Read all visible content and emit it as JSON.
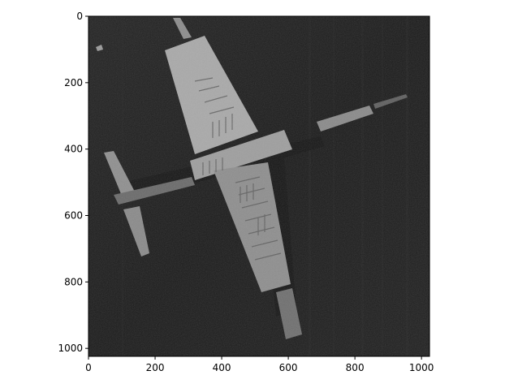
{
  "figure": {
    "subject": "grayscale-aerial-photo",
    "colors": {
      "image_background": "#1c1c1c",
      "foreground_light": "#bdbdbd",
      "axes_spine": "#000000"
    }
  },
  "axes": {
    "x_ticks": [
      {
        "value": 0,
        "label": "0"
      },
      {
        "value": 200,
        "label": "200"
      },
      {
        "value": 400,
        "label": "400"
      },
      {
        "value": 600,
        "label": "600"
      },
      {
        "value": 800,
        "label": "800"
      },
      {
        "value": 1000,
        "label": "1000"
      }
    ],
    "y_ticks": [
      {
        "value": 0,
        "label": "0"
      },
      {
        "value": 200,
        "label": "200"
      },
      {
        "value": 400,
        "label": "400"
      },
      {
        "value": 600,
        "label": "600"
      },
      {
        "value": 800,
        "label": "800"
      },
      {
        "value": 1000,
        "label": "1000"
      }
    ],
    "x_range": [
      0,
      1024
    ],
    "y_range": [
      0,
      1024
    ],
    "y_inverted": true,
    "grid": false
  }
}
